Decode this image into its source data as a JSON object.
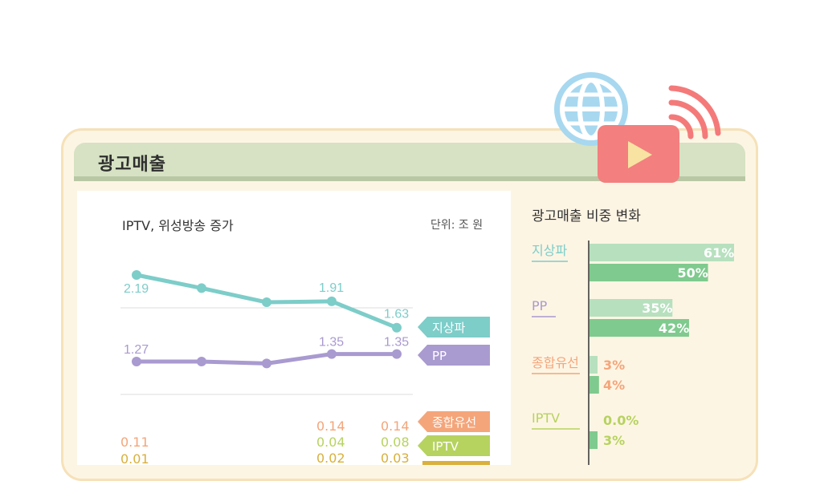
{
  "header": {
    "title": "광고매출"
  },
  "left_chart": {
    "subtitle": "IPTV, 위성방송 증가",
    "unit": "단위: 조 원"
  },
  "right_chart": {
    "title": "광고매출 비중 변화"
  },
  "icons": [
    "globe-icon",
    "play-button-icon",
    "broadcast-signal-icon"
  ],
  "colors": {
    "terrestrial": "#7dcdc9",
    "pp": "#a99ad0",
    "cable": "#f4a57a",
    "iptv": "#b6d35f",
    "bar_light": "#b7e0bf",
    "bar_dark": "#7fca8e"
  },
  "chart_data": [
    {
      "type": "line",
      "title": "IPTV, 위성방송 증가",
      "unit": "단위: 조 원",
      "x": [
        1,
        2,
        3,
        4,
        5
      ],
      "series": [
        {
          "name": "지상파",
          "values": [
            2.19,
            null,
            null,
            1.91,
            1.63
          ],
          "labels": [
            "2.19",
            "",
            "",
            "1.91",
            "1.63"
          ],
          "color": "#7dcdc9"
        },
        {
          "name": "PP",
          "values": [
            1.27,
            null,
            null,
            1.35,
            1.35
          ],
          "labels": [
            "1.27",
            "",
            "",
            "1.35",
            "1.35"
          ],
          "color": "#a99ad0"
        },
        {
          "name": "종합유선",
          "values": [
            0.11,
            null,
            null,
            0.14,
            0.14
          ],
          "labels": [
            "0.11",
            "",
            "",
            "0.14",
            "0.14"
          ],
          "color": "#f4a57a"
        },
        {
          "name": "IPTV",
          "values": [
            null,
            null,
            null,
            0.04,
            0.08
          ],
          "labels": [
            "",
            "",
            "",
            "0.04",
            "0.08"
          ],
          "color": "#b6d35f"
        },
        {
          "name": "",
          "values": [
            0.01,
            null,
            null,
            0.02,
            0.03
          ],
          "labels": [
            "0.01",
            "",
            "",
            "0.02",
            "0.03"
          ],
          "color": "#d9b03c"
        }
      ],
      "grid": true
    },
    {
      "type": "bar",
      "title": "광고매출 비중 변화",
      "categories": [
        "지상파",
        "PP",
        "종합유선",
        "IPTV"
      ],
      "series": [
        {
          "values": [
            61,
            35,
            3,
            0.0
          ],
          "labels": [
            "61%",
            "35%",
            "3%",
            "0.0%"
          ]
        },
        {
          "values": [
            50,
            42,
            4,
            3
          ],
          "labels": [
            "50%",
            "42%",
            "4%",
            "3%"
          ]
        }
      ],
      "category_colors": [
        "#7dcdc9",
        "#a99ad0",
        "#f4a57a",
        "#b6d35f"
      ]
    }
  ]
}
